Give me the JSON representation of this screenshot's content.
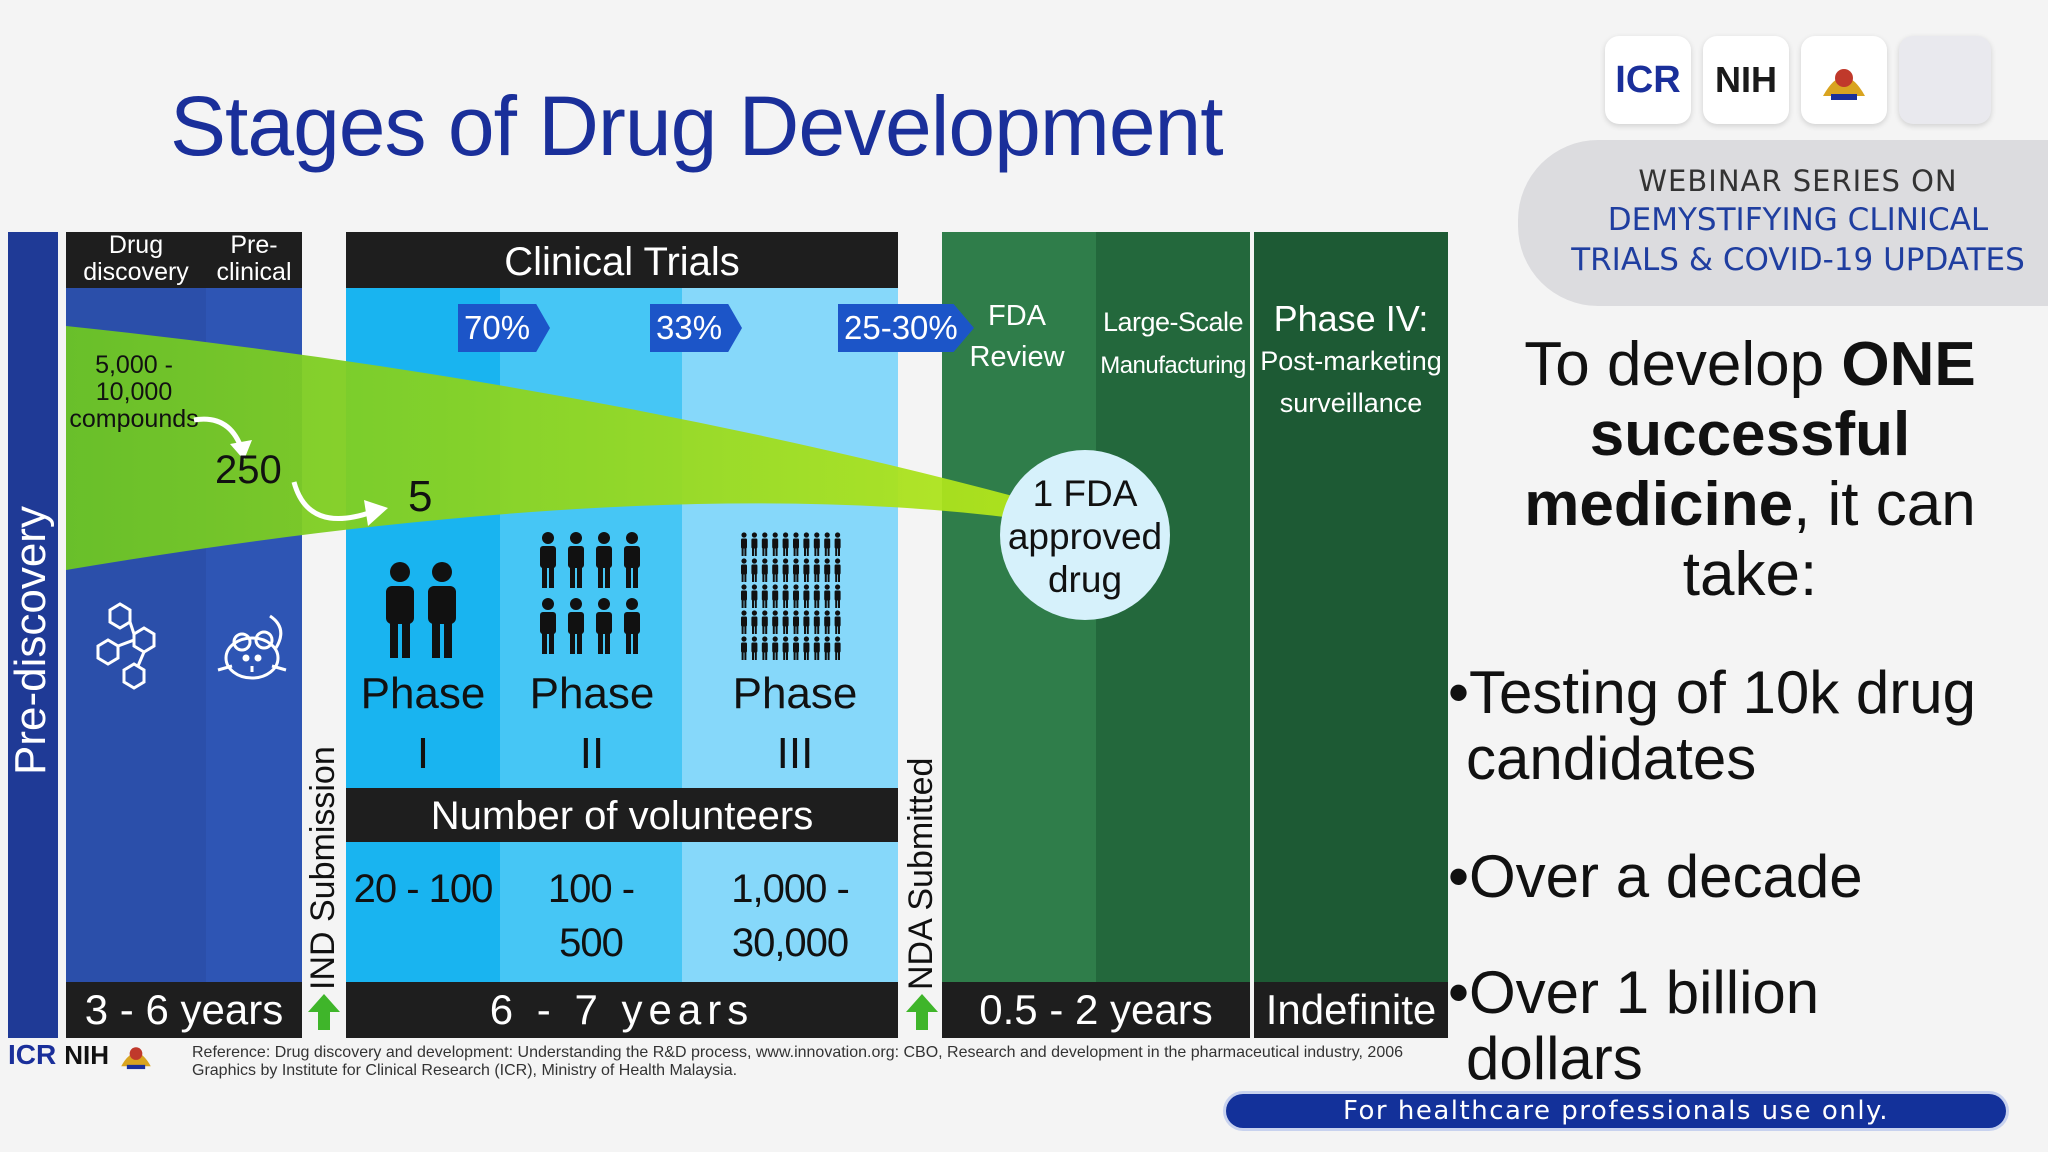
{
  "title": "Stages of Drug Development",
  "logos": {
    "icr": "ICR",
    "nih": "NIH"
  },
  "webinar": {
    "line1": "WEBINAR SERIES ON",
    "line2": "DEMYSTIFYING CLINICAL",
    "line3": "TRIALS & COVID-19 UPDATES"
  },
  "prediscovery": "Pre-discovery",
  "drug_discovery": {
    "line1": "Drug",
    "line2": "discovery"
  },
  "preclinical": {
    "line1": "Pre-",
    "line2": "clinical"
  },
  "compounds": {
    "line1": "5,000 -",
    "line2": "10,000",
    "line3": "compounds"
  },
  "n250": "250",
  "n5": "5",
  "approved": {
    "line1": "1 FDA",
    "line2": "approved",
    "line3": "drug"
  },
  "clinical_trials": "Clinical Trials",
  "chevrons": [
    "70%",
    "33%",
    "25-30%"
  ],
  "phases": [
    {
      "label": "Phase",
      "num": "I",
      "volunteers1": "20 - 100",
      "volunteers2": ""
    },
    {
      "label": "Phase",
      "num": "II",
      "volunteers1": "100 -",
      "volunteers2": "500"
    },
    {
      "label": "Phase",
      "num": "III",
      "volunteers1": "1,000 -",
      "volunteers2": "30,000"
    }
  ],
  "volunteers_header": "Number of volunteers",
  "ind": "IND Submission",
  "nda": "NDA Submitted",
  "fda_review": {
    "line1": "FDA",
    "line2": "Review"
  },
  "manufacturing": {
    "line1": "Large-Scale",
    "line2": "Manufacturing"
  },
  "phase4": {
    "line1": "Phase IV:",
    "line2": "Post-marketing",
    "line3": "surveillance"
  },
  "durations": {
    "pre": "3 - 6 years",
    "clinical": "6 - 7 years",
    "review": "0.5 - 2 years",
    "phase4": "Indefinite"
  },
  "side": {
    "line1a": "To develop ",
    "line1b": "ONE",
    "line2": "successful",
    "line3a": "medicine",
    "line3b": ", it can",
    "line4": "take:"
  },
  "bullets": [
    {
      "l1": "•Testing of 10k drug",
      "l2": "candidates"
    },
    {
      "l1": "•Over a decade",
      "l2": ""
    },
    {
      "l1": "•Over 1 billion",
      "l2": "dollars"
    }
  ],
  "reference": {
    "line1": "Reference: Drug discovery and development: Understanding the R&D process, www.innovation.org: CBO, Research and development in the pharmaceutical industry, 2006",
    "line2": "Graphics by Institute for Clinical Research (ICR), Ministry of Health Malaysia."
  },
  "footer": "For healthcare professionals use only.",
  "colors": {
    "navy": "#1f3a96",
    "blue": "#2b4faa",
    "cyan1": "#19b4f0",
    "cyan2": "#46c6f5",
    "cyan3": "#86d8fa",
    "green1": "#2f7d4a",
    "green2": "#23683c",
    "green3": "#1d5a34",
    "lime": "#8ed11f"
  }
}
